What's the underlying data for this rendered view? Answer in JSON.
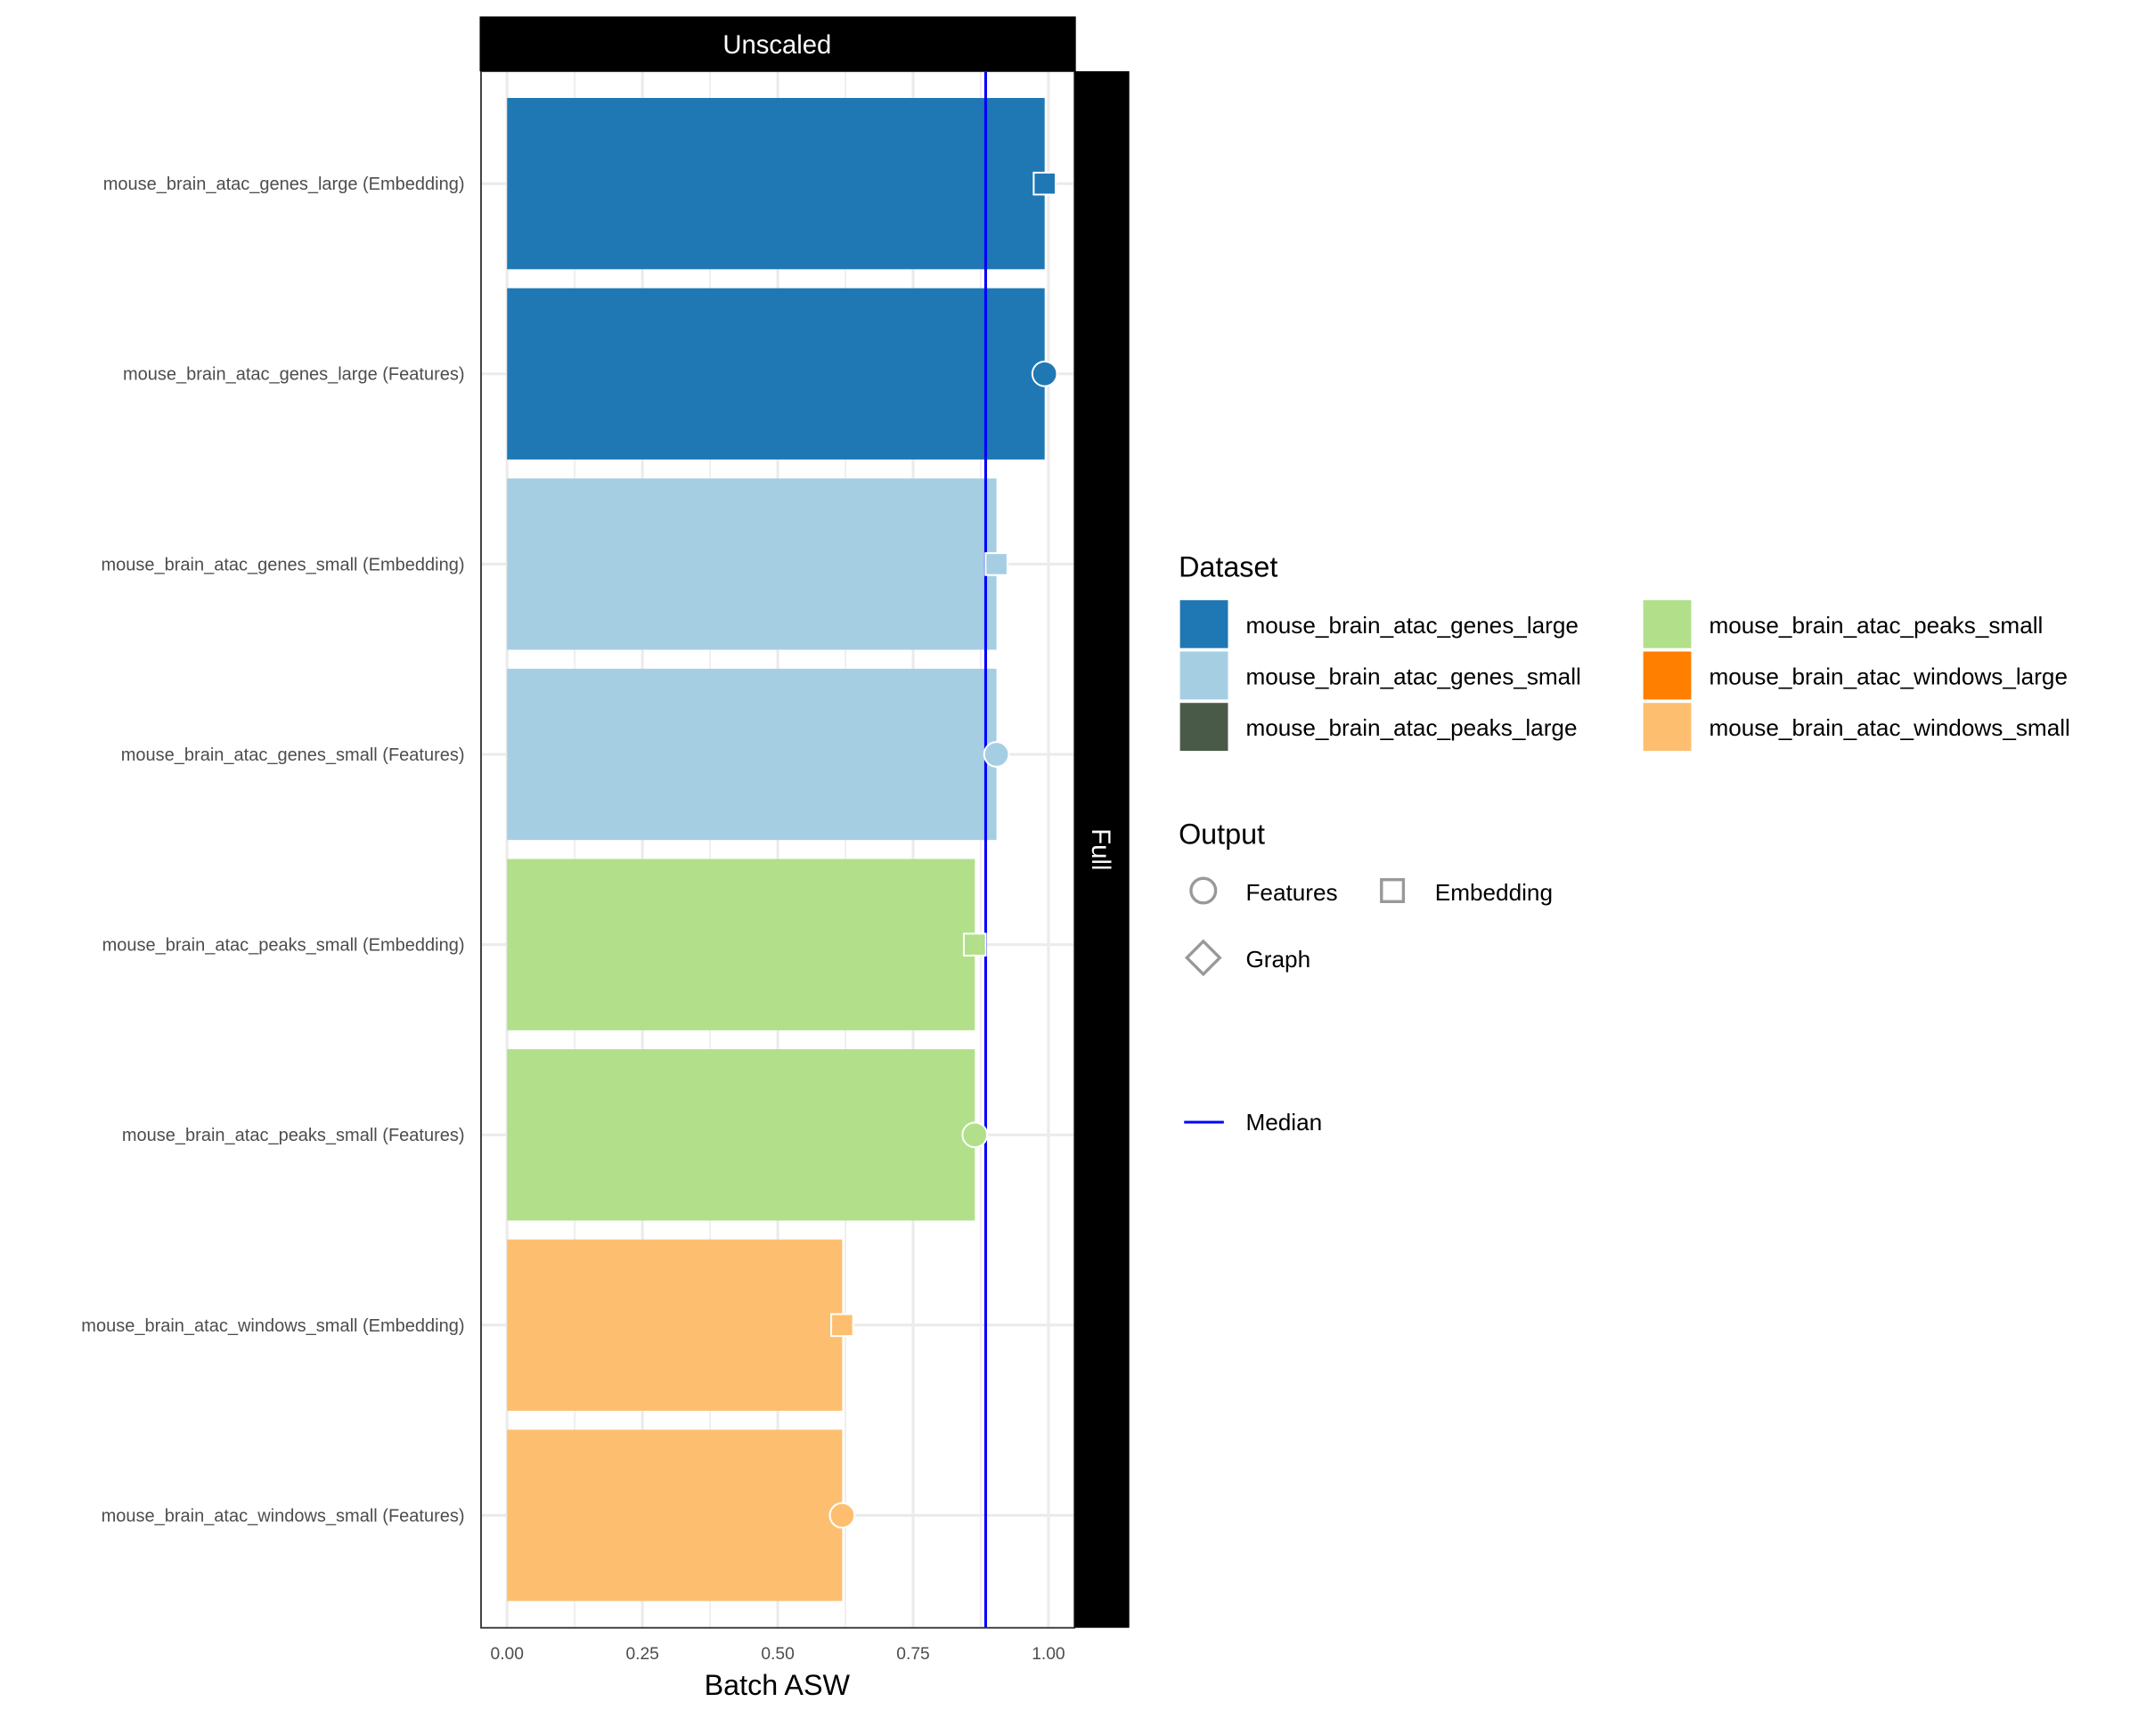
{
  "chart_data": {
    "type": "bar",
    "orientation": "horizontal",
    "facet_top": "Unscaled",
    "facet_right": "Full",
    "xlabel": "Batch ASW",
    "ylabel": "",
    "xlim": [
      0,
      1.05
    ],
    "x_ticks": [
      "0.00",
      "0.25",
      "0.50",
      "0.75",
      "1.00"
    ],
    "x_tick_values": [
      0,
      0.25,
      0.5,
      0.75,
      1.0
    ],
    "grid": true,
    "median": 0.884,
    "categories": [
      "mouse_brain_atac_genes_large (Embedding)",
      "mouse_brain_atac_genes_large (Features)",
      "mouse_brain_atac_genes_small (Embedding)",
      "mouse_brain_atac_genes_small (Features)",
      "mouse_brain_atac_peaks_small (Embedding)",
      "mouse_brain_atac_peaks_small (Features)",
      "mouse_brain_atac_windows_small (Embedding)",
      "mouse_brain_atac_windows_small (Features)"
    ],
    "values": [
      0.993,
      0.993,
      0.904,
      0.904,
      0.864,
      0.864,
      0.619,
      0.619
    ],
    "dataset": [
      "mouse_brain_atac_genes_large",
      "mouse_brain_atac_genes_large",
      "mouse_brain_atac_genes_small",
      "mouse_brain_atac_genes_small",
      "mouse_brain_atac_peaks_small",
      "mouse_brain_atac_peaks_small",
      "mouse_brain_atac_windows_small",
      "mouse_brain_atac_windows_small"
    ],
    "output": [
      "Embedding",
      "Features",
      "Embedding",
      "Features",
      "Embedding",
      "Features",
      "Embedding",
      "Features"
    ],
    "legend": {
      "placement": "right",
      "dataset_title": "Dataset",
      "datasets": [
        {
          "name": "mouse_brain_atac_genes_large",
          "color": "#1f78b4"
        },
        {
          "name": "mouse_brain_atac_genes_small",
          "color": "#a6cee3"
        },
        {
          "name": "mouse_brain_atac_peaks_large",
          "color": "#4a5a48"
        },
        {
          "name": "mouse_brain_atac_peaks_small",
          "color": "#b2df8a"
        },
        {
          "name": "mouse_brain_atac_windows_large",
          "color": "#ff7f00"
        },
        {
          "name": "mouse_brain_atac_windows_small",
          "color": "#fdbf6f"
        }
      ],
      "output_title": "Output",
      "outputs": [
        {
          "name": "Features",
          "shape": "circle"
        },
        {
          "name": "Embedding",
          "shape": "square"
        },
        {
          "name": "Graph",
          "shape": "diamond"
        }
      ],
      "median_label": "Median",
      "median_color": "#0000ff"
    }
  }
}
